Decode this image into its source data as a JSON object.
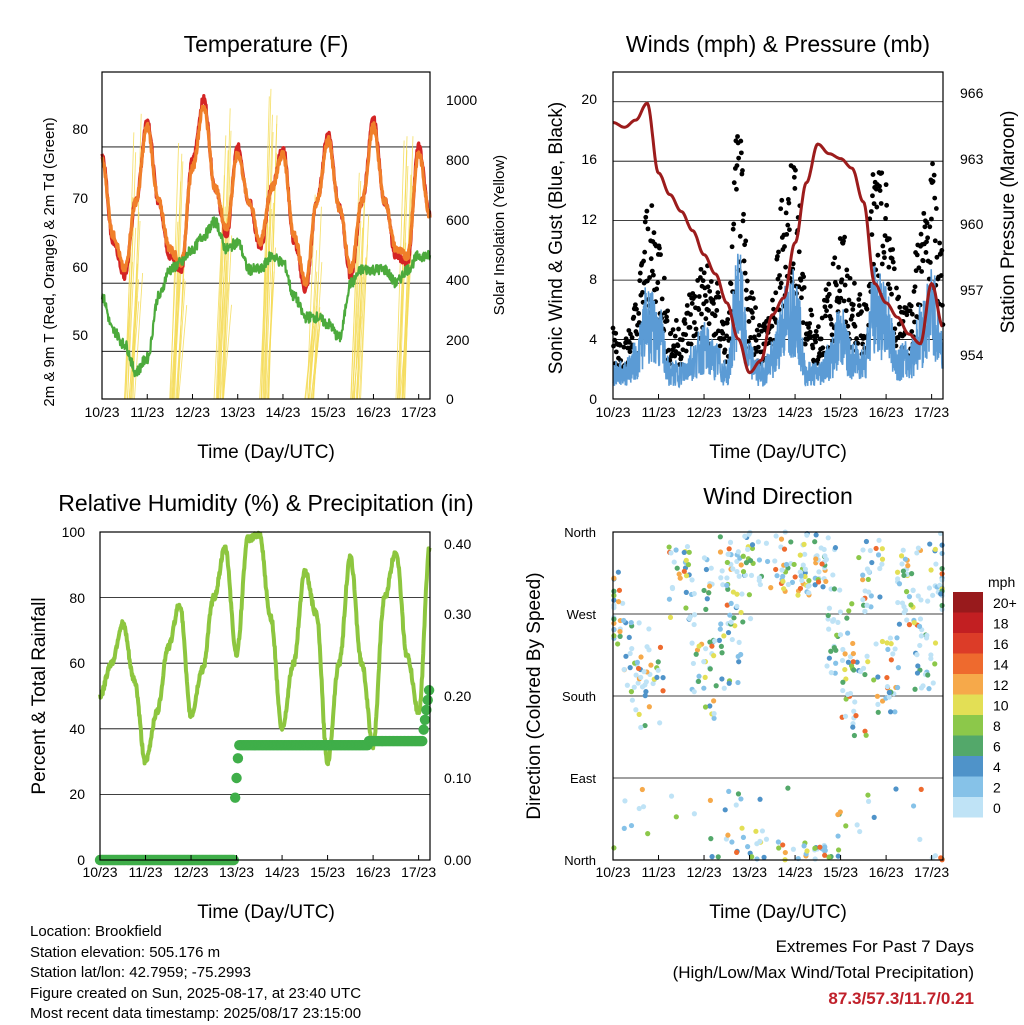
{
  "days": [
    "10/23",
    "11/23",
    "12/23",
    "13/23",
    "14/23",
    "15/23",
    "16/23",
    "17/23"
  ],
  "charts": {
    "temperature": {
      "title": "Temperature (F)",
      "xlabel": "Time (Day/UTC)",
      "ylabel_left": "2m & 9m T (Red, Orange) & 2m Td (Green)",
      "ylabel_right": "Solar Insolation (Yellow)",
      "left_ticks": [
        "50",
        "60",
        "70",
        "80"
      ],
      "right_ticks": [
        "0",
        "200",
        "400",
        "600",
        "800",
        "1000"
      ]
    },
    "winds": {
      "title": "Winds (mph) & Pressure (mb)",
      "xlabel": "Time (Day/UTC)",
      "ylabel_left": "Sonic Wind & Gust (Blue, Black)",
      "ylabel_right": "Station Pressure (Maroon)",
      "left_ticks": [
        "0",
        "4",
        "8",
        "12",
        "16",
        "20"
      ],
      "right_ticks": [
        "954",
        "957",
        "960",
        "963",
        "966"
      ]
    },
    "humidity": {
      "title": "Relative Humidity (%) & Precipitation (in)",
      "xlabel": "Time (Day/UTC)",
      "ylabel_left": "Percent & Total Rainfall",
      "left_ticks": [
        "0",
        "20",
        "40",
        "60",
        "80",
        "100"
      ],
      "right_ticks": [
        "0.00",
        "0.10",
        "0.20",
        "0.30",
        "0.40"
      ]
    },
    "direction": {
      "title": "Wind Direction",
      "xlabel": "Time (Day/UTC)",
      "ylabel_left": "Direction (Colored By Speed)",
      "dir_ticks": [
        "North",
        "East",
        "South",
        "West",
        "North"
      ],
      "legend_title": "mph",
      "legend_labels": [
        "0",
        "2",
        "4",
        "6",
        "8",
        "10",
        "12",
        "14",
        "16",
        "18",
        "20+"
      ],
      "legend_colors": [
        "#bfe3f6",
        "#86c2e8",
        "#4f93c9",
        "#53a86a",
        "#8cc84a",
        "#e3df55",
        "#f6a94a",
        "#ee6a2e",
        "#dc3c28",
        "#c21f22",
        "#981a1c"
      ]
    }
  },
  "chart_data": [
    {
      "type": "line",
      "title": "Temperature (F)",
      "xlabel": "Time (Day/UTC)",
      "ylabel": "2m & 9m T (Red, Orange) & 2m Td (Green)",
      "y2label": "Solar Insolation (Yellow)",
      "x_days": [
        10,
        10.25,
        10.5,
        10.75,
        11,
        11.25,
        11.5,
        11.75,
        12,
        12.25,
        12.5,
        12.75,
        13,
        13.25,
        13.5,
        13.75,
        14,
        14.25,
        14.5,
        14.75,
        15,
        15.25,
        15.5,
        15.75,
        16,
        16.25,
        16.5,
        16.75,
        17,
        17.25
      ],
      "ylim": [
        43,
        91
      ],
      "y2lim": [
        0,
        1100
      ],
      "series": [
        {
          "name": "2m T",
          "color": "#d42424",
          "values": [
            79,
            66,
            61,
            72,
            84,
            72,
            64,
            62,
            78,
            87,
            74,
            67,
            80,
            72,
            65,
            74,
            80,
            66,
            59,
            72,
            82,
            71,
            61,
            72,
            84,
            72,
            64,
            63,
            80,
            70
          ]
        },
        {
          "name": "9m T",
          "color": "#f07f2a",
          "values": [
            78,
            67,
            62,
            72,
            83,
            72,
            65,
            63,
            77,
            86,
            74,
            68,
            79,
            72,
            66,
            74,
            79,
            67,
            60,
            72,
            81,
            71,
            62,
            72,
            83,
            72,
            65,
            64,
            79,
            70
          ]
        },
        {
          "name": "2m Td",
          "color": "#4caa3c",
          "values": [
            58,
            53,
            51,
            47,
            49,
            58,
            62,
            63,
            65,
            67,
            69,
            65,
            66,
            62,
            62,
            64,
            63,
            58,
            55,
            55,
            54,
            52,
            60,
            62,
            62,
            62,
            60,
            62,
            64,
            64
          ]
        }
      ]
    },
    {
      "type": "line",
      "title": "Winds (mph) & Pressure (mb)",
      "xlabel": "Time (Day/UTC)",
      "ylabel": "Sonic Wind & Gust (Blue, Black)",
      "y2label": "Station Pressure (Maroon)",
      "ylim": [
        0,
        22
      ],
      "y2lim": [
        953,
        966.6
      ],
      "x_days": [
        10,
        10.25,
        10.5,
        10.75,
        11,
        11.25,
        11.5,
        11.75,
        12,
        12.25,
        12.5,
        12.75,
        13,
        13.25,
        13.5,
        13.75,
        14,
        14.25,
        14.5,
        14.75,
        15,
        15.25,
        15.5,
        15.75,
        16,
        16.25,
        16.5,
        16.75,
        17,
        17.25
      ],
      "series": [
        {
          "name": "Sonic Wind",
          "color": "#5b9bd5",
          "values": [
            2,
            2,
            3,
            6,
            5,
            2,
            2,
            3,
            4,
            3,
            2,
            8,
            3,
            2,
            3,
            6,
            7,
            2,
            2,
            3,
            5,
            3,
            3,
            7,
            6,
            3,
            3,
            5,
            7,
            4
          ]
        },
        {
          "name": "Gust",
          "color": "#000000",
          "values": [
            4,
            3,
            5,
            10,
            9,
            4,
            4,
            6,
            7,
            6,
            4,
            14,
            6,
            4,
            5,
            11,
            13,
            5,
            4,
            6,
            9,
            6,
            5,
            12,
            11,
            6,
            5,
            9,
            12,
            8
          ]
        },
        {
          "name": "Station Pressure",
          "color": "#9c1c1c",
          "values": [
            964.5,
            964.3,
            964.6,
            965.3,
            962.4,
            961.5,
            960.8,
            960,
            959,
            958.2,
            957,
            955.5,
            954.1,
            954.6,
            956.5,
            957.2,
            959.5,
            962,
            963.6,
            963.2,
            963,
            962.6,
            961.2,
            957.8,
            957,
            956.4,
            955.7,
            955.3,
            957.8,
            956
          ]
        }
      ]
    },
    {
      "type": "line",
      "title": "Relative Humidity (%) & Precipitation (in)",
      "xlabel": "Time (Day/UTC)",
      "ylabel": "Percent & Total Rainfall",
      "ylim": [
        0,
        100
      ],
      "y2lim": [
        0,
        0.4
      ],
      "x_days": [
        10,
        10.25,
        10.5,
        10.75,
        11,
        11.25,
        11.5,
        11.75,
        12,
        12.25,
        12.5,
        12.75,
        13,
        13.25,
        13.5,
        13.75,
        14,
        14.25,
        14.5,
        14.75,
        15,
        15.25,
        15.5,
        15.75,
        16,
        16.25,
        16.5,
        16.75,
        17,
        17.25
      ],
      "series": [
        {
          "name": "Relative Humidity",
          "color": "#8dc63f",
          "values": [
            50,
            60,
            72,
            55,
            30,
            45,
            65,
            78,
            44,
            58,
            80,
            95,
            63,
            98,
            99,
            74,
            40,
            60,
            88,
            75,
            30,
            60,
            92,
            60,
            35,
            80,
            94,
            62,
            45,
            96
          ]
        },
        {
          "name": "Total Precipitation",
          "color": "#3fae49",
          "values": [
            0,
            0,
            0,
            0,
            0,
            0,
            0,
            0,
            0,
            0,
            0,
            0,
            0.06,
            0.14,
            0.14,
            0.14,
            0.14,
            0.14,
            0.14,
            0.14,
            0.14,
            0.14,
            0.14,
            0.14,
            0.145,
            0.145,
            0.145,
            0.145,
            0.15,
            0.2
          ]
        }
      ]
    },
    {
      "type": "scatter",
      "title": "Wind Direction",
      "xlabel": "Time (Day/UTC)",
      "ylabel": "Direction (Colored By Speed)",
      "y_categories": [
        "North",
        "East",
        "South",
        "West",
        "North"
      ],
      "ylim": [
        0,
        360
      ],
      "color_scale_label": "mph",
      "color_scale": [
        "0",
        "2",
        "4",
        "6",
        "8",
        "10",
        "12",
        "14",
        "16",
        "18",
        "20+"
      ]
    }
  ],
  "info": {
    "location": "Location: Brookfield",
    "elevation": "Station elevation: 505.176 m",
    "latlon": "Station lat/lon: 42.7959; -75.2993",
    "created": "Figure created on Sun, 2025-08-17, at 23:40 UTC",
    "recent": "Most recent data timestamp: 2025/08/17 23:15:00"
  },
  "extremes": {
    "title": "Extremes For Past 7 Days",
    "subtitle": "(High/Low/Max Wind/Total Precipitation)",
    "values": "87.3/57.3/11.7/0.21"
  }
}
